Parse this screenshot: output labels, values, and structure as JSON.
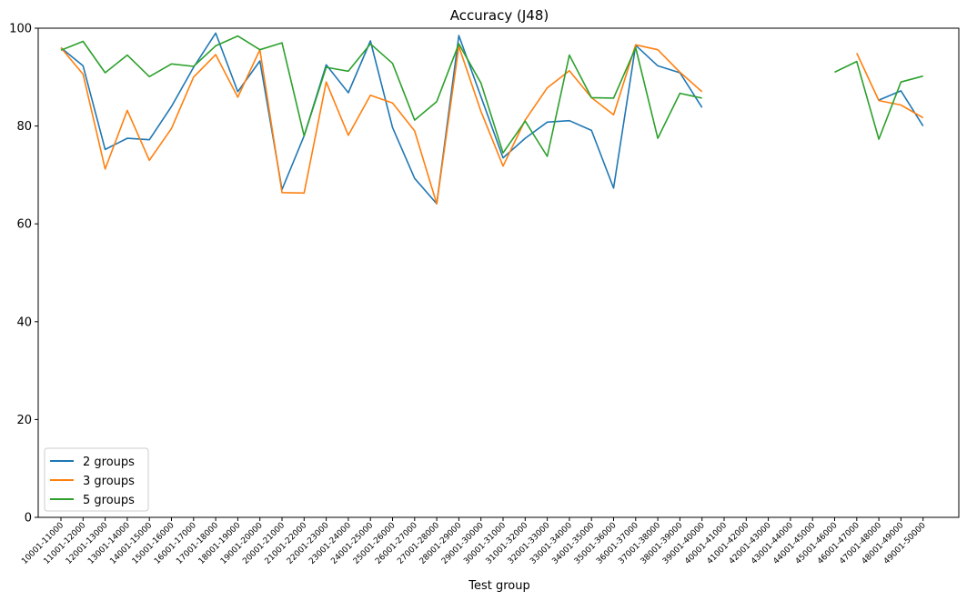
{
  "chart_data": {
    "type": "line",
    "title": "Accuracy (J48)",
    "xlabel": "Test group",
    "ylabel": "",
    "ylim": [
      0,
      100
    ],
    "yticks": [
      0,
      20,
      40,
      60,
      80,
      100
    ],
    "grid": false,
    "legend_position": "lower-left",
    "categories": [
      "10001-11000",
      "11001-12000",
      "12001-13000",
      "13001-14000",
      "14001-15000",
      "15001-16000",
      "16001-17000",
      "17001-18000",
      "18001-19000",
      "19001-20000",
      "20001-21000",
      "21001-22000",
      "22001-23000",
      "23001-24000",
      "24001-25000",
      "25001-26000",
      "26001-27000",
      "27001-28000",
      "28001-29000",
      "29001-30000",
      "30001-31000",
      "31001-32000",
      "32001-33000",
      "33001-34000",
      "34001-35000",
      "35001-36000",
      "36001-37000",
      "37001-38000",
      "38001-39000",
      "39001-40000",
      "40001-41000",
      "41001-42000",
      "42001-43000",
      "43001-44000",
      "44001-45000",
      "45001-46000",
      "46001-47000",
      "47001-48000",
      "48001-49000",
      "49001-50000"
    ],
    "series": [
      {
        "name": "2 groups",
        "color": "#1f77b4",
        "values": [
          96,
          92.3,
          75.2,
          77.5,
          77.2,
          84,
          92,
          99,
          87,
          93.3,
          67,
          78,
          92.5,
          86.8,
          97.4,
          79.7,
          69.3,
          64.1,
          98.5,
          86,
          73.5,
          77.5,
          80.8,
          81.1,
          79.1,
          67.3,
          96.5,
          92.3,
          90.9,
          83.8,
          null,
          null,
          null,
          null,
          null,
          null,
          null,
          85.3,
          87.2,
          80
        ]
      },
      {
        "name": "3 groups",
        "color": "#ff7f0e",
        "values": [
          96,
          90.6,
          71.2,
          83.2,
          73,
          79.5,
          90,
          94.6,
          85.9,
          95.6,
          66.4,
          66.3,
          89,
          78.1,
          86.3,
          84.7,
          79,
          64.1,
          96.3,
          83,
          71.8,
          81.2,
          87.8,
          91.3,
          85.8,
          82.3,
          96.6,
          95.6,
          91,
          87,
          null,
          null,
          null,
          null,
          null,
          null,
          94.9,
          85.2,
          84.3,
          81.7
        ]
      },
      {
        "name": "5 groups",
        "color": "#2ca02c",
        "values": [
          95.5,
          97.3,
          90.9,
          94.5,
          90.1,
          92.7,
          92.2,
          96.4,
          98.4,
          95.6,
          97,
          78,
          92,
          91.2,
          96.8,
          92.8,
          81.2,
          85,
          96.8,
          88.8,
          74.5,
          81,
          73.8,
          94.5,
          85.8,
          85.7,
          96,
          77.5,
          86.7,
          85.7,
          null,
          null,
          null,
          null,
          null,
          91,
          93.2,
          77.3,
          89,
          90.2
        ]
      }
    ]
  }
}
